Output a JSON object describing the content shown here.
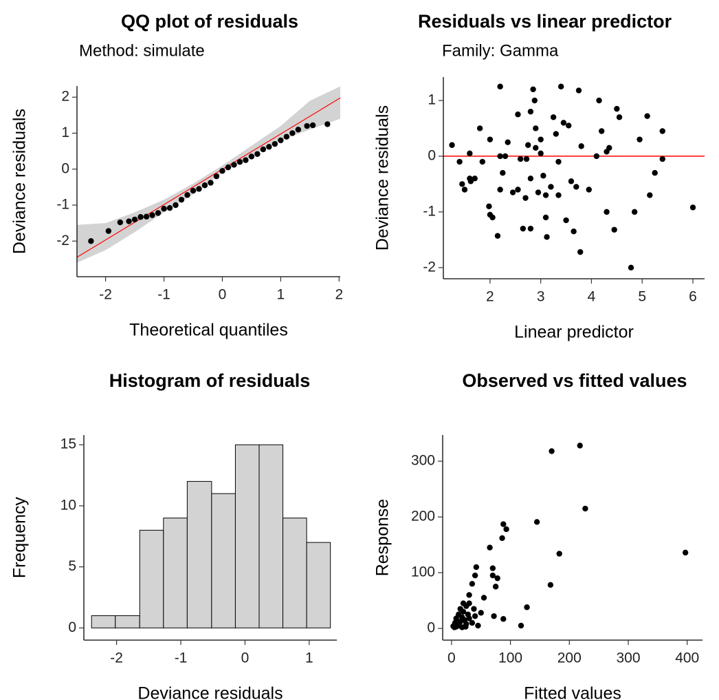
{
  "chart_data": [
    {
      "type": "qq",
      "title": "QQ plot of residuals",
      "subtitle": "Method: simulate",
      "xlabel": "Theoretical quantiles",
      "ylabel": "Deviance residuals",
      "xlim": [
        -2.49,
        2.02
      ],
      "ylim": [
        -2.99,
        2.31
      ],
      "xticks": [
        -2,
        -1,
        0,
        1,
        2
      ],
      "yticks": [
        -2,
        -1,
        0,
        1,
        2
      ],
      "color": "black",
      "x": [
        -2.25,
        -1.95,
        -1.75,
        -1.6,
        -1.5,
        -1.4,
        -1.3,
        -1.2,
        -1.1,
        -1.0,
        -0.9,
        -0.8,
        -0.7,
        -0.6,
        -0.5,
        -0.4,
        -0.3,
        -0.2,
        -0.1,
        0,
        0.1,
        0.2,
        0.3,
        0.4,
        0.5,
        0.6,
        0.7,
        0.8,
        0.9,
        1.0,
        1.1,
        1.2,
        1.3,
        1.45,
        1.55,
        1.8
      ],
      "values": [
        -2.0,
        -1.72,
        -1.48,
        -1.45,
        -1.4,
        -1.33,
        -1.32,
        -1.28,
        -1.22,
        -1.1,
        -1.08,
        -1.0,
        -0.85,
        -0.72,
        -0.6,
        -0.55,
        -0.45,
        -0.38,
        -0.2,
        -0.05,
        0.05,
        0.12,
        0.2,
        0.25,
        0.35,
        0.42,
        0.55,
        0.62,
        0.7,
        0.8,
        0.9,
        1.0,
        1.1,
        1.2,
        1.22,
        1.25
      ],
      "reference_line": {
        "x": [
          -2.49,
          2.02
        ],
        "values": [
          -2.45,
          1.98
        ],
        "color": "red"
      },
      "band": {
        "x": [
          -2.49,
          -2,
          -1.5,
          -1,
          -0.5,
          0,
          0.5,
          1,
          1.5,
          2.02
        ],
        "lower": [
          -2.6,
          -2.25,
          -1.75,
          -1.2,
          -0.7,
          -0.1,
          0.35,
          0.8,
          1.1,
          1.4
        ],
        "upper": [
          -1.55,
          -1.5,
          -1.2,
          -0.85,
          -0.4,
          0.1,
          0.65,
          1.2,
          1.9,
          2.3
        ],
        "color": "#d3d3d3"
      }
    },
    {
      "type": "scatter",
      "title": "Residuals vs linear predictor",
      "subtitle": "Family: Gamma",
      "xlabel": "Linear predictor",
      "ylabel": "Deviance residuals",
      "xlim": [
        1.08,
        6.23
      ],
      "ylim": [
        -2.2,
        1.42
      ],
      "xticks": [
        2,
        3,
        4,
        5,
        6
      ],
      "yticks": [
        -2,
        -1,
        0,
        1
      ],
      "color": "black",
      "x": [
        1.25,
        1.4,
        1.45,
        1.5,
        1.6,
        1.6,
        1.7,
        1.62,
        1.8,
        1.85,
        1.98,
        2.0,
        2.05,
        2.0,
        2.2,
        2.2,
        2.25,
        2.2,
        2.15,
        2.3,
        2.35,
        2.45,
        2.55,
        2.55,
        2.6,
        2.65,
        2.7,
        2.72,
        2.75,
        2.8,
        2.8,
        2.8,
        2.85,
        2.88,
        2.9,
        2.9,
        2.95,
        3.0,
        3.0,
        3.05,
        3.1,
        3.1,
        3.12,
        3.2,
        3.25,
        3.3,
        3.35,
        3.35,
        3.4,
        3.45,
        3.5,
        3.55,
        3.6,
        3.65,
        3.7,
        3.75,
        3.78,
        3.8,
        3.95,
        4.1,
        4.15,
        4.2,
        4.3,
        4.3,
        4.35,
        4.45,
        4.5,
        4.55,
        4.78,
        4.85,
        4.95,
        5.1,
        5.15,
        5.25,
        5.4,
        5.4,
        6.0
      ],
      "values": [
        0.2,
        -0.1,
        -0.5,
        -0.6,
        0.05,
        -0.4,
        -0.4,
        -0.45,
        0.5,
        -0.1,
        -0.9,
        -1.05,
        -1.1,
        0.3,
        1.25,
        0.0,
        -0.3,
        -0.6,
        -1.43,
        0.0,
        0.25,
        -0.65,
        0.75,
        -0.6,
        -0.05,
        -1.3,
        -0.75,
        -0.05,
        0.2,
        0.8,
        -0.4,
        -1.3,
        1.2,
        1.0,
        0.5,
        0.15,
        -0.65,
        0.3,
        0.05,
        -0.35,
        -0.7,
        -1.1,
        -1.45,
        -0.55,
        0.7,
        0.4,
        -0.7,
        -0.1,
        1.25,
        0.6,
        -1.15,
        0.55,
        -0.45,
        -1.35,
        -0.55,
        1.18,
        -1.72,
        0.18,
        -0.6,
        0.0,
        1.0,
        0.45,
        0.08,
        -1.0,
        0.15,
        -1.32,
        0.85,
        0.7,
        -2.0,
        -1.0,
        0.3,
        0.72,
        -0.7,
        -0.3,
        0.45,
        -0.05,
        -0.92
      ],
      "hline": {
        "value": 0,
        "color": "red"
      }
    },
    {
      "type": "histogram",
      "title": "Histogram of residuals",
      "xlabel": "Deviance residuals",
      "ylabel": "Frequency",
      "xlim": [
        -2.51,
        1.43
      ],
      "ylim": [
        -1.0,
        15.8
      ],
      "xticks": [
        -2,
        -1,
        0,
        1
      ],
      "yticks": [
        0,
        5,
        10,
        15
      ],
      "color": "#d3d3d3",
      "bins": [
        -2.39,
        -2.02,
        -1.64,
        -1.27,
        -0.9,
        -0.52,
        -0.15,
        0.22,
        0.59,
        0.96,
        1.33
      ],
      "values": [
        1,
        1,
        8,
        9,
        12,
        11,
        15,
        15,
        9,
        7
      ]
    },
    {
      "type": "scatter",
      "title": "Observed vs fitted values",
      "xlabel": "Fitted values",
      "ylabel": "Response",
      "xlim": [
        -15,
        426
      ],
      "ylim": [
        -21,
        347
      ],
      "xticks": [
        0,
        100,
        200,
        300,
        400
      ],
      "yticks": [
        0,
        100,
        200,
        300
      ],
      "color": "black",
      "x": [
        170,
        218,
        227,
        183,
        168,
        397,
        145,
        88,
        93,
        86,
        65,
        42,
        70,
        70,
        78,
        40,
        35,
        30,
        75,
        55,
        128,
        118,
        88,
        72,
        50,
        38,
        30,
        25,
        20,
        18,
        15,
        12,
        8,
        5,
        10,
        22,
        28,
        35,
        45,
        15,
        20,
        25,
        30,
        40,
        8,
        6,
        3,
        12,
        18,
        24
      ],
      "values": [
        318,
        328,
        215,
        134,
        78,
        136,
        191,
        187,
        178,
        162,
        145,
        110,
        108,
        95,
        90,
        95,
        80,
        60,
        75,
        55,
        38,
        5,
        17,
        22,
        28,
        35,
        45,
        40,
        30,
        20,
        12,
        5,
        3,
        2,
        8,
        15,
        25,
        10,
        5,
        35,
        45,
        8,
        18,
        22,
        18,
        10,
        4,
        25,
        2,
        3
      ]
    }
  ]
}
